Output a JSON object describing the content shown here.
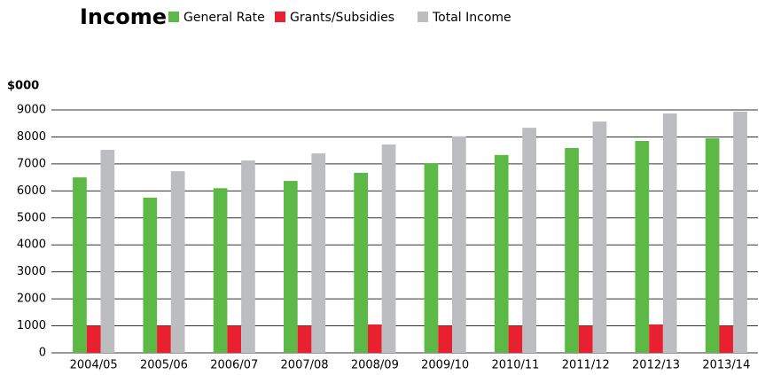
{
  "chart_data": {
    "type": "bar",
    "title": "Income",
    "y_label": "$000",
    "categories": [
      "2004/05",
      "2005/06",
      "2006/07",
      "2007/08",
      "2008/09",
      "2009/10",
      "2010/11",
      "2011/12",
      "2012/13",
      "2013/14"
    ],
    "series": [
      {
        "name": "General Rate",
        "color": "#5db946",
        "values": [
          6500,
          5750,
          6100,
          6370,
          6670,
          7030,
          7330,
          7590,
          7850,
          7950
        ]
      },
      {
        "name": "Grants/Subsidies",
        "color": "#e8202f",
        "values": [
          1000,
          1000,
          1000,
          1000,
          1050,
          1000,
          1000,
          1000,
          1050,
          1000
        ]
      },
      {
        "name": "Total Income",
        "color": "#bcbdc0",
        "values": [
          7520,
          6730,
          7130,
          7390,
          7720,
          8020,
          8340,
          8570,
          8870,
          8940
        ]
      }
    ],
    "ylim": [
      0,
      9000
    ],
    "yticks": [
      0,
      1000,
      2000,
      3000,
      4000,
      5000,
      6000,
      7000,
      8000,
      9000
    ],
    "grid": true
  }
}
